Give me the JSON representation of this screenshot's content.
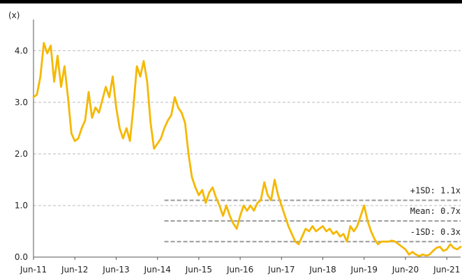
{
  "chart_data": {
    "type": "line",
    "ylabel": "(x)",
    "ylim": [
      0,
      4.2
    ],
    "y_ticks": [
      "0.0",
      "1.0",
      "2.0",
      "3.0",
      "4.0"
    ],
    "x_range": [
      "2011-06",
      "2021-10"
    ],
    "x_ticks": [
      "Jun-11",
      "Jun-12",
      "Jun-13",
      "Jun-14",
      "Jun-15",
      "Jun-16",
      "Jun-17",
      "Jun-18",
      "Jun-19",
      "Jun-20",
      "Jun-21"
    ],
    "grid": "horizontal dashed",
    "series": [
      {
        "color": "#F5B800",
        "points": [
          [
            "2011-06",
            3.1
          ],
          [
            "2011-07",
            3.15
          ],
          [
            "2011-08",
            3.5
          ],
          [
            "2011-09",
            4.15
          ],
          [
            "2011-10",
            3.95
          ],
          [
            "2011-11",
            4.1
          ],
          [
            "2011-12",
            3.4
          ],
          [
            "2012-01",
            3.9
          ],
          [
            "2012-02",
            3.3
          ],
          [
            "2012-03",
            3.7
          ],
          [
            "2012-04",
            3.1
          ],
          [
            "2012-05",
            2.4
          ],
          [
            "2012-06",
            2.25
          ],
          [
            "2012-07",
            2.3
          ],
          [
            "2012-08",
            2.5
          ],
          [
            "2012-09",
            2.65
          ],
          [
            "2012-10",
            3.2
          ],
          [
            "2012-11",
            2.7
          ],
          [
            "2012-12",
            2.9
          ],
          [
            "2013-01",
            2.8
          ],
          [
            "2013-02",
            3.05
          ],
          [
            "2013-03",
            3.3
          ],
          [
            "2013-04",
            3.1
          ],
          [
            "2013-05",
            3.5
          ],
          [
            "2013-06",
            2.9
          ],
          [
            "2013-07",
            2.5
          ],
          [
            "2013-08",
            2.3
          ],
          [
            "2013-09",
            2.5
          ],
          [
            "2013-10",
            2.25
          ],
          [
            "2013-11",
            2.9
          ],
          [
            "2013-12",
            3.7
          ],
          [
            "2014-01",
            3.5
          ],
          [
            "2014-02",
            3.8
          ],
          [
            "2014-03",
            3.4
          ],
          [
            "2014-04",
            2.6
          ],
          [
            "2014-05",
            2.1
          ],
          [
            "2014-06",
            2.2
          ],
          [
            "2014-07",
            2.3
          ],
          [
            "2014-08",
            2.5
          ],
          [
            "2014-09",
            2.65
          ],
          [
            "2014-10",
            2.75
          ],
          [
            "2014-11",
            3.1
          ],
          [
            "2014-12",
            2.9
          ],
          [
            "2015-01",
            2.8
          ],
          [
            "2015-02",
            2.6
          ],
          [
            "2015-03",
            2.0
          ],
          [
            "2015-04",
            1.55
          ],
          [
            "2015-05",
            1.35
          ],
          [
            "2015-06",
            1.2
          ],
          [
            "2015-07",
            1.3
          ],
          [
            "2015-08",
            1.05
          ],
          [
            "2015-09",
            1.25
          ],
          [
            "2015-10",
            1.35
          ],
          [
            "2015-11",
            1.15
          ],
          [
            "2015-12",
            1.0
          ],
          [
            "2016-01",
            0.8
          ],
          [
            "2016-02",
            1.0
          ],
          [
            "2016-03",
            0.8
          ],
          [
            "2016-04",
            0.65
          ],
          [
            "2016-05",
            0.55
          ],
          [
            "2016-06",
            0.8
          ],
          [
            "2016-07",
            1.0
          ],
          [
            "2016-08",
            0.9
          ],
          [
            "2016-09",
            1.0
          ],
          [
            "2016-10",
            0.9
          ],
          [
            "2016-11",
            1.05
          ],
          [
            "2016-12",
            1.1
          ],
          [
            "2017-01",
            1.45
          ],
          [
            "2017-02",
            1.2
          ],
          [
            "2017-03",
            1.1
          ],
          [
            "2017-04",
            1.5
          ],
          [
            "2017-05",
            1.2
          ],
          [
            "2017-06",
            1.0
          ],
          [
            "2017-07",
            0.8
          ],
          [
            "2017-08",
            0.6
          ],
          [
            "2017-09",
            0.45
          ],
          [
            "2017-10",
            0.3
          ],
          [
            "2017-11",
            0.25
          ],
          [
            "2017-12",
            0.4
          ],
          [
            "2018-01",
            0.55
          ],
          [
            "2018-02",
            0.5
          ],
          [
            "2018-03",
            0.6
          ],
          [
            "2018-04",
            0.5
          ],
          [
            "2018-05",
            0.55
          ],
          [
            "2018-06",
            0.6
          ],
          [
            "2018-07",
            0.5
          ],
          [
            "2018-08",
            0.55
          ],
          [
            "2018-09",
            0.45
          ],
          [
            "2018-10",
            0.5
          ],
          [
            "2018-11",
            0.4
          ],
          [
            "2018-12",
            0.45
          ],
          [
            "2019-01",
            0.3
          ],
          [
            "2019-02",
            0.6
          ],
          [
            "2019-03",
            0.5
          ],
          [
            "2019-04",
            0.6
          ],
          [
            "2019-05",
            0.8
          ],
          [
            "2019-06",
            1.0
          ],
          [
            "2019-07",
            0.7
          ],
          [
            "2019-08",
            0.5
          ],
          [
            "2019-09",
            0.35
          ],
          [
            "2019-10",
            0.25
          ],
          [
            "2019-11",
            0.3
          ],
          [
            "2019-12",
            0.3
          ],
          [
            "2020-01",
            0.3
          ],
          [
            "2020-02",
            0.32
          ],
          [
            "2020-03",
            0.3
          ],
          [
            "2020-04",
            0.25
          ],
          [
            "2020-05",
            0.2
          ],
          [
            "2020-06",
            0.15
          ],
          [
            "2020-07",
            0.05
          ],
          [
            "2020-08",
            0.1
          ],
          [
            "2020-09",
            0.05
          ],
          [
            "2020-10",
            0.02
          ],
          [
            "2020-11",
            0.05
          ],
          [
            "2020-12",
            0.03
          ],
          [
            "2021-01",
            0.05
          ],
          [
            "2021-02",
            0.12
          ],
          [
            "2021-03",
            0.18
          ],
          [
            "2021-04",
            0.2
          ],
          [
            "2021-05",
            0.12
          ],
          [
            "2021-06",
            0.15
          ],
          [
            "2021-07",
            0.25
          ],
          [
            "2021-08",
            0.18
          ],
          [
            "2021-09",
            0.15
          ],
          [
            "2021-10",
            0.2
          ]
        ]
      }
    ],
    "reference_lines": [
      {
        "label": "+1SD: 1.1x",
        "value": 1.1
      },
      {
        "label": "Mean: 0.7x",
        "value": 0.7
      },
      {
        "label": "-1SD: 0.3x",
        "value": 0.3
      }
    ],
    "colors": {
      "line": "#F5B800",
      "grid": "#BBBBBB",
      "reference": "#999999"
    }
  }
}
